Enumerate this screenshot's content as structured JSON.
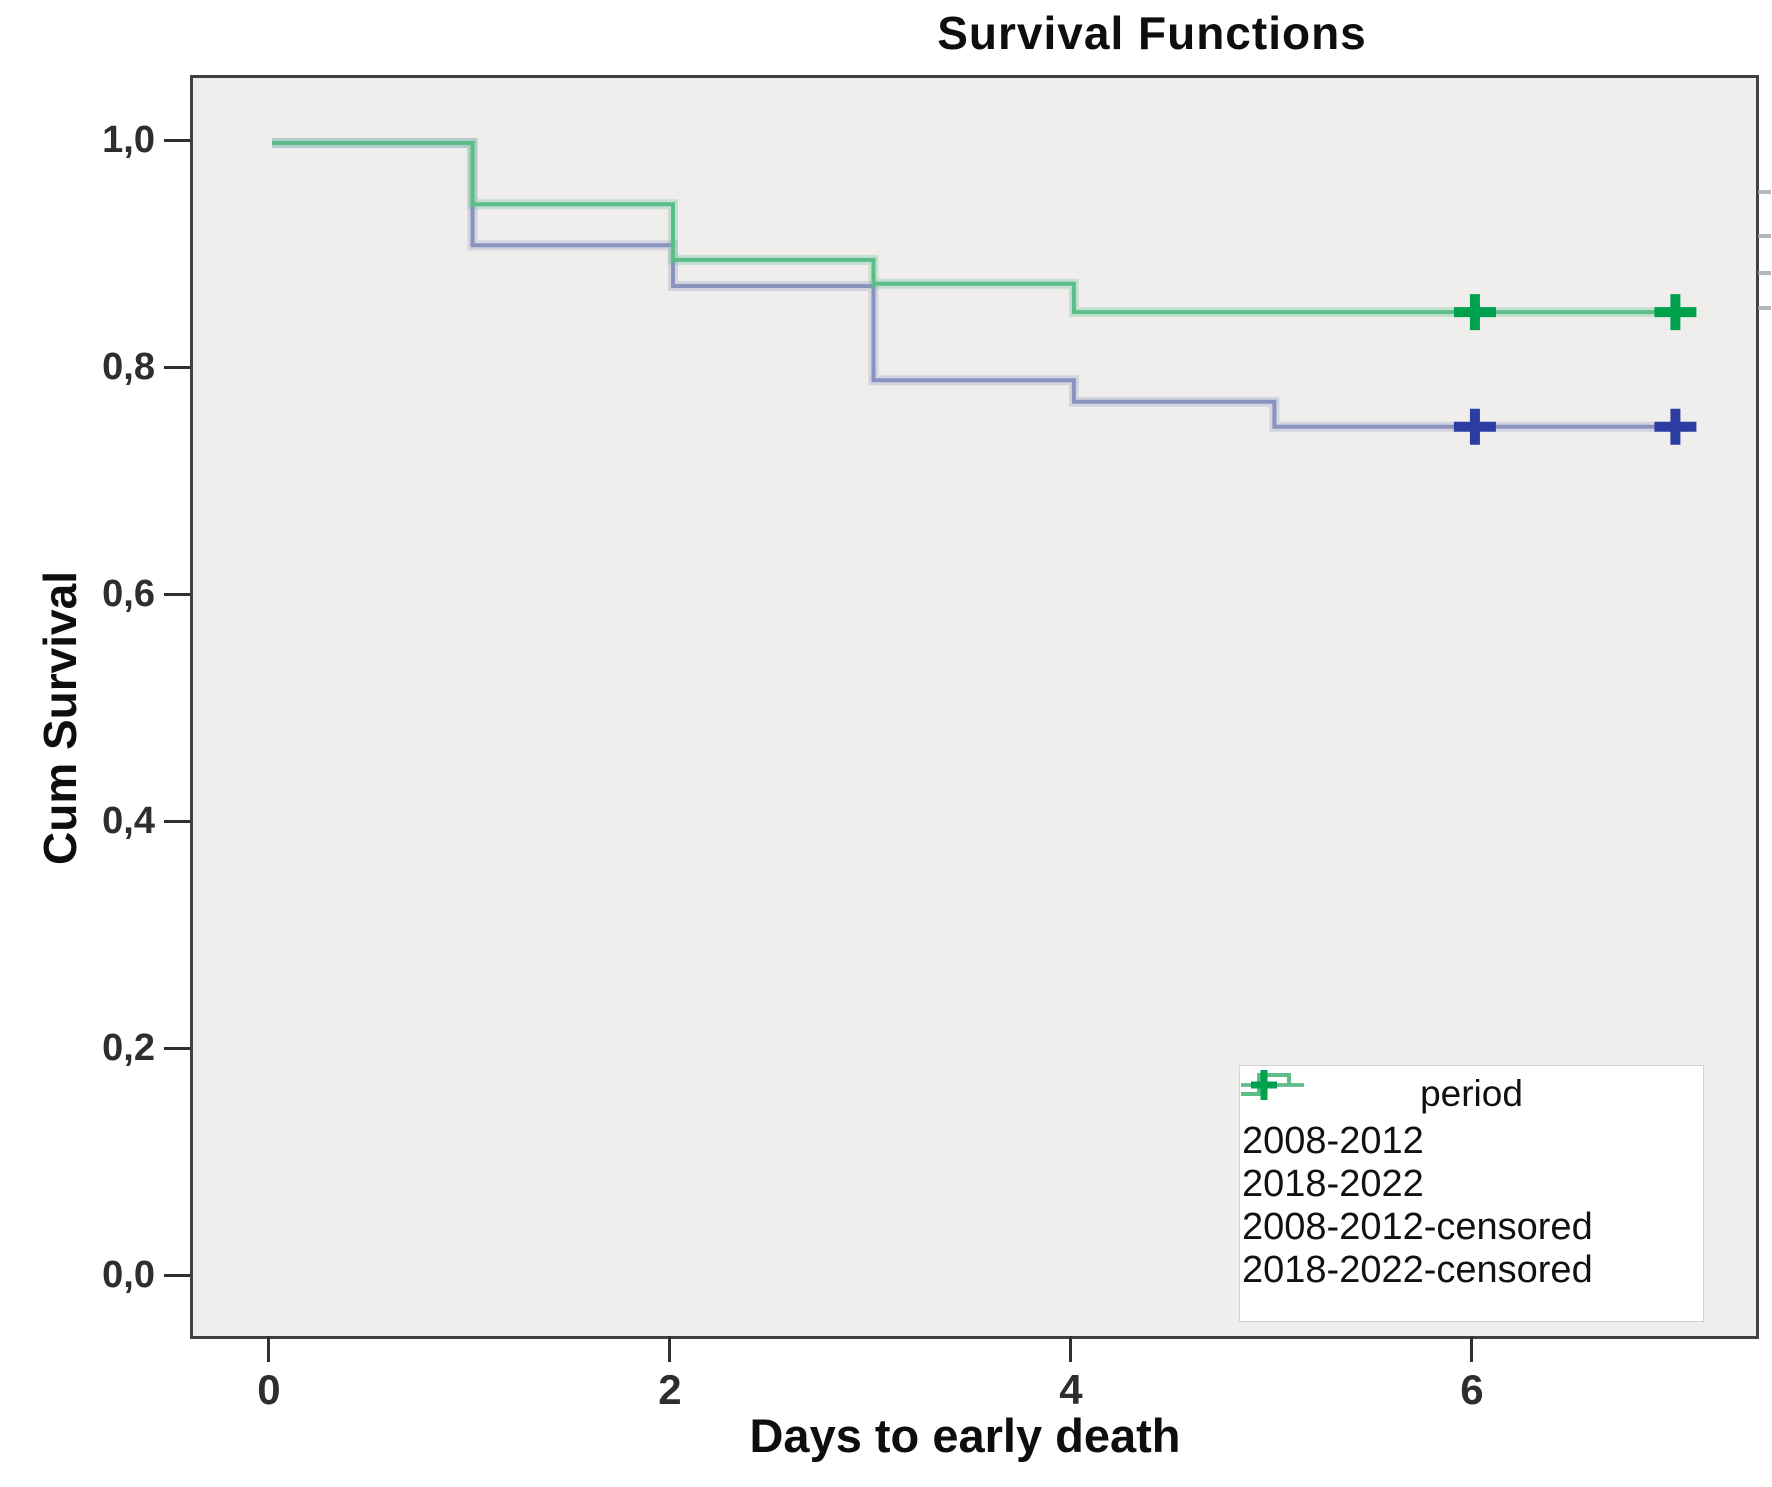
{
  "title": "Survival Functions",
  "axes": {
    "x_label": "Days to early death",
    "y_label": "Cum Survival",
    "x_ticks": [
      {
        "value": 0,
        "label": "0"
      },
      {
        "value": 2,
        "label": "2"
      },
      {
        "value": 4,
        "label": "4"
      },
      {
        "value": 6,
        "label": "6"
      }
    ],
    "y_ticks": [
      {
        "value": 1.0,
        "label": "1,0"
      },
      {
        "value": 0.8,
        "label": "0,8"
      },
      {
        "value": 0.6,
        "label": "0,6"
      },
      {
        "value": 0.4,
        "label": "0,4"
      },
      {
        "value": 0.2,
        "label": "0,2"
      },
      {
        "value": 0.0,
        "label": "0,0"
      }
    ]
  },
  "legend": {
    "title": "period",
    "entries": [
      {
        "label": "2008-2012",
        "kind": "step",
        "color": "#8a93bf",
        "marker_color": "#2b3da0"
      },
      {
        "label": "2018-2022",
        "kind": "step",
        "color": "#5bbd88",
        "marker_color": "#00a14e"
      },
      {
        "label": "2008-2012-censored",
        "kind": "censored",
        "color": "#8a93bf",
        "marker_color": "#2b3da0"
      },
      {
        "label": "2018-2022-censored",
        "kind": "censored",
        "color": "#5bbd88",
        "marker_color": "#00a14e"
      }
    ]
  },
  "chart_data": {
    "type": "line",
    "subtype": "kaplan-meier-step",
    "title": "Survival Functions",
    "xlabel": "Days to early death",
    "ylabel": "Cum Survival",
    "grid": false,
    "plot_background": "#efeeec",
    "legend_position": "bottom-right",
    "x_domain": [
      -0.394,
      7.402
    ],
    "y_domain": [
      -0.0511,
      1.0573
    ],
    "x_tick_values": [
      0,
      2,
      4,
      6
    ],
    "y_tick_values": [
      1.0,
      0.8,
      0.6,
      0.4,
      0.2,
      0.0
    ],
    "series": [
      {
        "name": "2008-2012",
        "color": "#8a93bf",
        "marker_color": "#2b3da0",
        "steps": [
          [
            0,
            1.0
          ],
          [
            1,
            0.91
          ],
          [
            2,
            0.874
          ],
          [
            3,
            0.791
          ],
          [
            4,
            0.772
          ],
          [
            5,
            0.75
          ]
        ],
        "line_end_x": 7.1,
        "censored": [
          {
            "x": 6,
            "y": 0.75
          },
          {
            "x": 7,
            "y": 0.75
          }
        ]
      },
      {
        "name": "2018-2022",
        "color": "#5bbd88",
        "marker_color": "#00a14e",
        "steps": [
          [
            0,
            1.0
          ],
          [
            1,
            0.946
          ],
          [
            2,
            0.897
          ],
          [
            3,
            0.876
          ],
          [
            4,
            0.851
          ]
        ],
        "line_end_x": 7.1,
        "censored": [
          {
            "x": 6,
            "y": 0.851
          },
          {
            "x": 7,
            "y": 0.851
          }
        ]
      }
    ]
  }
}
